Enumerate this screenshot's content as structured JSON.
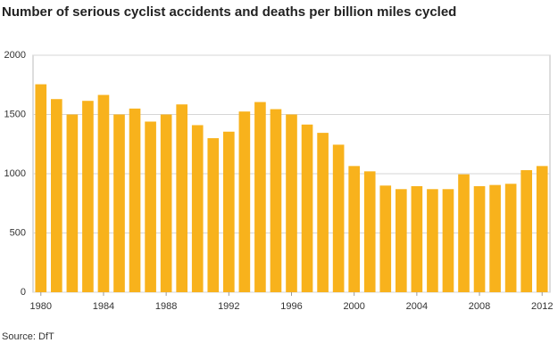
{
  "chart_data": {
    "type": "bar",
    "title": "Number of serious cyclist accidents and deaths per billion miles cycled",
    "source": "Source: DfT",
    "categories": [
      "1980",
      null,
      null,
      null,
      "1984",
      null,
      null,
      null,
      "1988",
      null,
      null,
      null,
      "1992",
      null,
      null,
      null,
      "1996",
      null,
      null,
      null,
      "2000",
      null,
      null,
      null,
      "2004",
      null,
      null,
      null,
      "2008",
      null,
      null,
      null,
      "2012"
    ],
    "values": [
      1755,
      1630,
      1500,
      1615,
      1665,
      1500,
      1550,
      1440,
      1500,
      1585,
      1410,
      1300,
      1355,
      1525,
      1605,
      1545,
      1500,
      1415,
      1345,
      1245,
      1065,
      1020,
      900,
      870,
      895,
      870,
      870,
      995,
      895,
      905,
      915,
      1030,
      1065
    ],
    "color": "#f8b21c",
    "ylim": [
      0,
      2000
    ],
    "yticks": [
      0,
      500,
      1000,
      1500,
      2000
    ],
    "grid": true
  }
}
